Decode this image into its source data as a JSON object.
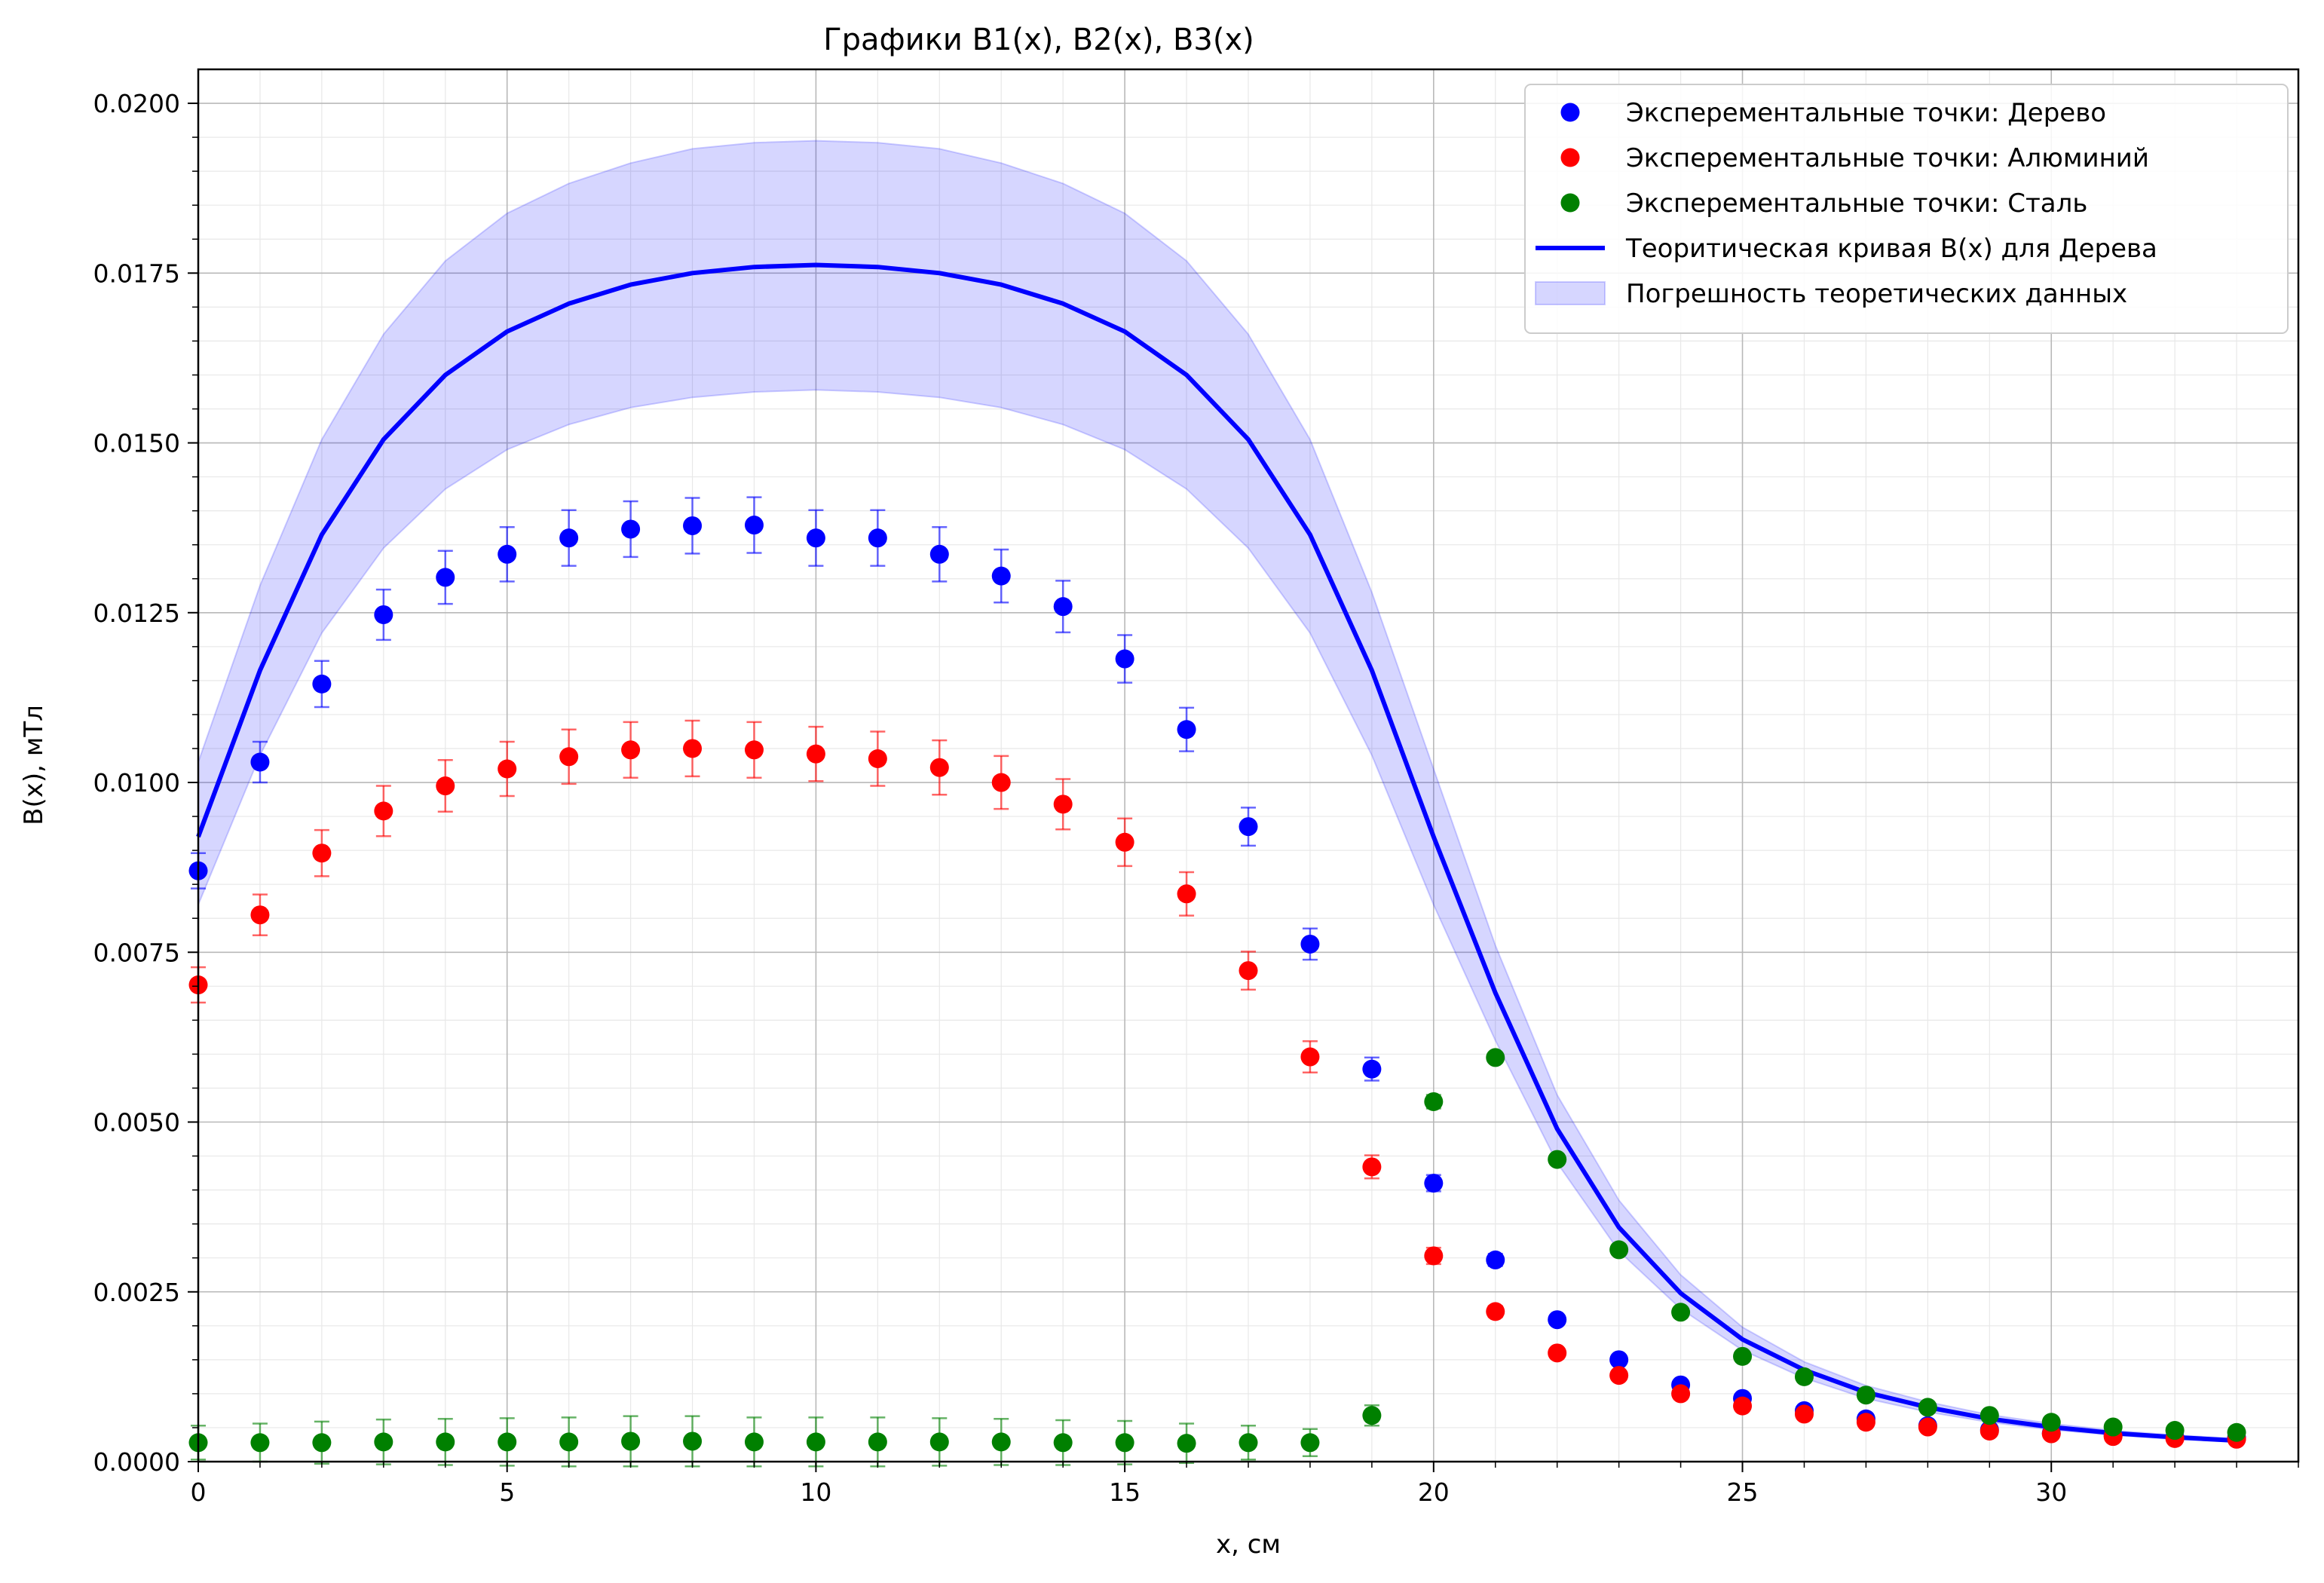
{
  "chart_data": {
    "type": "scatter",
    "title": "Графики B1(x), B2(x), B3(x)",
    "xlabel": "x, см",
    "ylabel": "B(x), мТл",
    "xlim": [
      0,
      34
    ],
    "ylim": [
      0,
      0.0205
    ],
    "xticks": [
      0,
      5,
      10,
      15,
      20,
      25,
      30
    ],
    "xtick_labels": [
      "0",
      "5",
      "10",
      "15",
      "20",
      "25",
      "30"
    ],
    "yticks": [
      0,
      0.0025,
      0.005,
      0.0075,
      0.01,
      0.0125,
      0.015,
      0.0175,
      0.02
    ],
    "ytick_labels": [
      "0.0000",
      "0.0025",
      "0.0050",
      "0.0075",
      "0.0100",
      "0.0125",
      "0.0150",
      "0.0175",
      "0.0200"
    ],
    "grid": "major and minor",
    "legend_position": "top-right",
    "x": [
      0,
      1,
      2,
      3,
      4,
      5,
      6,
      7,
      8,
      9,
      10,
      11,
      12,
      13,
      14,
      15,
      16,
      17,
      18,
      19,
      20,
      21,
      22,
      23,
      24,
      25,
      26,
      27,
      28,
      29,
      30,
      31,
      32,
      33
    ],
    "series": [
      {
        "name": "Эксперементальные точки: Дерево",
        "kind": "points",
        "color": "#0000ff",
        "values": [
          0.0087,
          0.0103,
          0.01145,
          0.01247,
          0.01302,
          0.01336,
          0.0136,
          0.01373,
          0.01378,
          0.01379,
          0.0136,
          0.0136,
          0.01336,
          0.01304,
          0.01259,
          0.01182,
          0.01078,
          0.00935,
          0.00762,
          0.00578,
          0.0041,
          0.00297,
          0.00209,
          0.0015,
          0.00113,
          0.00093,
          0.00075,
          0.00063,
          0.00053,
          0.00047,
          0.00042,
          0.00039,
          0.00036,
          0.00035
        ],
        "errors": [
          0.00026,
          0.0003,
          0.00034,
          0.00037,
          0.00039,
          0.0004,
          0.00041,
          0.00041,
          0.00041,
          0.00041,
          0.00041,
          0.00041,
          0.0004,
          0.00039,
          0.00038,
          0.00035,
          0.00032,
          0.00028,
          0.00023,
          0.00017,
          0.00012,
          9e-05,
          6e-05,
          5e-05,
          3e-05,
          3e-05,
          2e-05,
          2e-05,
          2e-05,
          1e-05,
          1e-05,
          1e-05,
          1e-05,
          1e-05
        ]
      },
      {
        "name": "Эксперементальные точки: Алюминий",
        "kind": "points",
        "color": "#ff0000",
        "values": [
          0.00702,
          0.00805,
          0.00896,
          0.00958,
          0.00995,
          0.0102,
          0.01038,
          0.01048,
          0.0105,
          0.01048,
          0.01042,
          0.01035,
          0.01022,
          0.01,
          0.00968,
          0.00912,
          0.00836,
          0.00723,
          0.00596,
          0.00434,
          0.00303,
          0.00221,
          0.0016,
          0.00127,
          0.001,
          0.00082,
          0.0007,
          0.00058,
          0.00051,
          0.00045,
          0.00041,
          0.00037,
          0.00034,
          0.00033
        ],
        "errors": [
          0.00026,
          0.0003,
          0.00034,
          0.00037,
          0.00038,
          0.0004,
          0.0004,
          0.00041,
          0.00041,
          0.00041,
          0.0004,
          0.0004,
          0.0004,
          0.00039,
          0.00037,
          0.00035,
          0.00032,
          0.00028,
          0.00023,
          0.00017,
          0.00012,
          8e-05,
          6e-05,
          5e-05,
          4e-05,
          3e-05,
          3e-05,
          2e-05,
          2e-05,
          2e-05,
          2e-05,
          1e-05,
          1e-05,
          1e-05
        ]
      },
      {
        "name": "Эксперементальные точки: Сталь",
        "kind": "points",
        "color": "#008000",
        "values": [
          0.00028,
          0.00028,
          0.00028,
          0.00029,
          0.00029,
          0.00029,
          0.00029,
          0.0003,
          0.0003,
          0.00029,
          0.00029,
          0.00029,
          0.00029,
          0.00029,
          0.00028,
          0.00028,
          0.00027,
          0.00028,
          0.00028,
          0.00068,
          0.0053,
          0.00595,
          0.00445,
          0.00312,
          0.0022,
          0.00155,
          0.00125,
          0.00098,
          0.0008,
          0.00068,
          0.00058,
          0.00051,
          0.00046,
          0.00043
        ],
        "errors": [
          0.00025,
          0.00028,
          0.00031,
          0.00033,
          0.00034,
          0.00035,
          0.00036,
          0.00037,
          0.00037,
          0.00036,
          0.00036,
          0.00036,
          0.00035,
          0.00034,
          0.00033,
          0.00032,
          0.00029,
          0.00025,
          0.0002,
          0.00015,
          0.0001,
          7e-05,
          5e-05,
          4e-05,
          3e-05,
          2e-05,
          2e-05,
          2e-05,
          1e-05,
          1e-05,
          1e-05,
          1e-05,
          1e-05,
          1e-05
        ]
      },
      {
        "name": "Теоритическая кривая B(x) для Дерева",
        "kind": "line",
        "color": "#0000ff",
        "values": [
          0.0092,
          0.01165,
          0.01365,
          0.01505,
          0.016,
          0.01664,
          0.01705,
          0.01733,
          0.0175,
          0.01759,
          0.01762,
          0.01759,
          0.0175,
          0.01733,
          0.01705,
          0.01664,
          0.016,
          0.01505,
          0.01365,
          0.01165,
          0.0092,
          0.0069,
          0.0049,
          0.00345,
          0.00248,
          0.0018,
          0.00135,
          0.00102,
          0.0008,
          0.00063,
          0.00051,
          0.00042,
          0.00036,
          0.00031
        ]
      },
      {
        "name": "Погрешность теоретических данных",
        "kind": "band",
        "color": "#0000ff",
        "lower": [
          0.0082,
          0.0104,
          0.0122,
          0.01345,
          0.01432,
          0.0149,
          0.01527,
          0.01552,
          0.01567,
          0.01575,
          0.01578,
          0.01575,
          0.01567,
          0.01552,
          0.01527,
          0.0149,
          0.01432,
          0.01345,
          0.0122,
          0.0104,
          0.0082,
          0.0062,
          0.0044,
          0.0031,
          0.00225,
          0.00164,
          0.00123,
          0.00093,
          0.00073,
          0.00058,
          0.00047,
          0.00039,
          0.00033,
          0.00029
        ],
        "upper": [
          0.0103,
          0.0129,
          0.01505,
          0.0166,
          0.01768,
          0.01838,
          0.01882,
          0.01912,
          0.01933,
          0.01942,
          0.01945,
          0.01942,
          0.01933,
          0.01912,
          0.01882,
          0.01838,
          0.01768,
          0.0166,
          0.01505,
          0.0128,
          0.0102,
          0.0076,
          0.0054,
          0.00385,
          0.00275,
          0.00198,
          0.00147,
          0.00112,
          0.00088,
          0.00069,
          0.00056,
          0.00046,
          0.00039,
          0.00034
        ]
      }
    ]
  }
}
